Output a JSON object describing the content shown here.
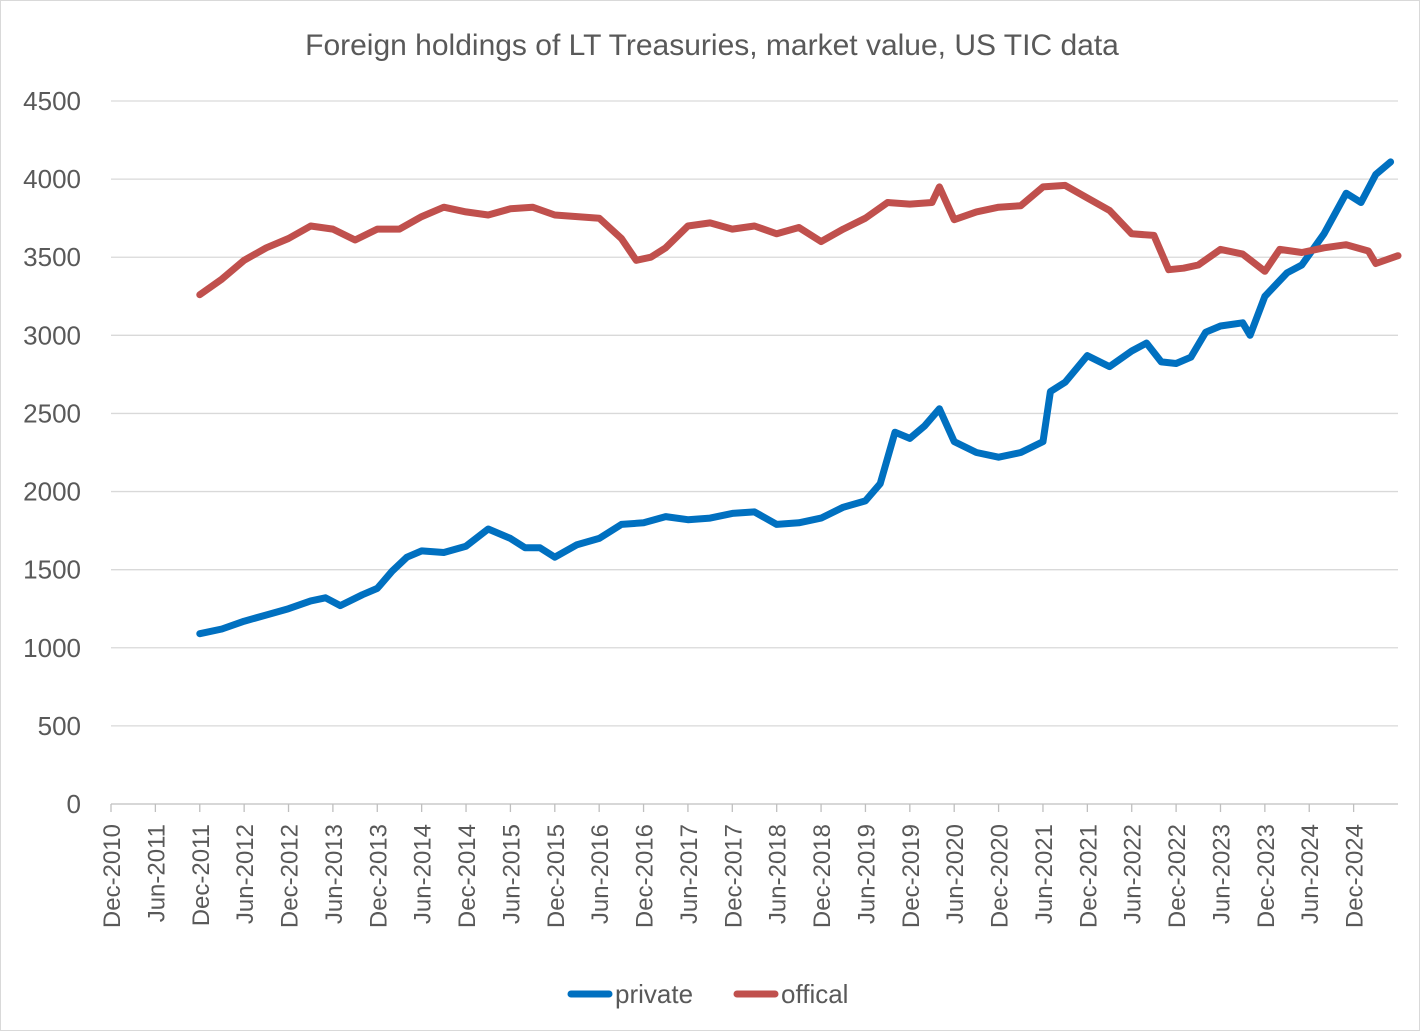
{
  "chart_data": {
    "type": "line",
    "title": "Foreign holdings of LT Treasuries, market value, US TIC data",
    "xlabel": "",
    "ylabel": "",
    "ylim": [
      0,
      4500
    ],
    "yticks": [
      "0",
      "500",
      "1000",
      "1500",
      "2000",
      "2500",
      "3000",
      "3500",
      "4000",
      "4500"
    ],
    "xlim": [
      "2010-12",
      "2025-06"
    ],
    "xticks": [
      "Dec-2010",
      "Jun-2011",
      "Dec-2011",
      "Jun-2012",
      "Dec-2012",
      "Jun-2013",
      "Dec-2013",
      "Jun-2014",
      "Dec-2014",
      "Jun-2015",
      "Dec-2015",
      "Jun-2016",
      "Dec-2016",
      "Jun-2017",
      "Dec-2017",
      "Jun-2018",
      "Dec-2018",
      "Jun-2019",
      "Dec-2019",
      "Jun-2020",
      "Dec-2020",
      "Jun-2021",
      "Dec-2021",
      "Jun-2022",
      "Dec-2022",
      "Jun-2023",
      "Dec-2023",
      "Jun-2024",
      "Dec-2024"
    ],
    "grid": true,
    "legend_position": "bottom",
    "series": [
      {
        "name": "private",
        "color": "#0070C0",
        "points": [
          [
            "2011-12",
            1090
          ],
          [
            "2012-03",
            1120
          ],
          [
            "2012-06",
            1170
          ],
          [
            "2012-09",
            1210
          ],
          [
            "2012-12",
            1250
          ],
          [
            "2013-03",
            1300
          ],
          [
            "2013-05",
            1320
          ],
          [
            "2013-07",
            1270
          ],
          [
            "2013-10",
            1340
          ],
          [
            "2013-12",
            1380
          ],
          [
            "2014-02",
            1490
          ],
          [
            "2014-04",
            1580
          ],
          [
            "2014-06",
            1620
          ],
          [
            "2014-09",
            1610
          ],
          [
            "2014-12",
            1650
          ],
          [
            "2015-03",
            1760
          ],
          [
            "2015-06",
            1700
          ],
          [
            "2015-08",
            1640
          ],
          [
            "2015-10",
            1640
          ],
          [
            "2015-12",
            1580
          ],
          [
            "2016-03",
            1660
          ],
          [
            "2016-06",
            1700
          ],
          [
            "2016-09",
            1790
          ],
          [
            "2016-12",
            1800
          ],
          [
            "2017-03",
            1840
          ],
          [
            "2017-06",
            1820
          ],
          [
            "2017-09",
            1830
          ],
          [
            "2017-12",
            1860
          ],
          [
            "2018-03",
            1870
          ],
          [
            "2018-06",
            1790
          ],
          [
            "2018-09",
            1800
          ],
          [
            "2018-12",
            1830
          ],
          [
            "2019-03",
            1900
          ],
          [
            "2019-06",
            1940
          ],
          [
            "2019-08",
            2050
          ],
          [
            "2019-10",
            2380
          ],
          [
            "2019-12",
            2340
          ],
          [
            "2020-02",
            2420
          ],
          [
            "2020-04",
            2530
          ],
          [
            "2020-06",
            2320
          ],
          [
            "2020-09",
            2250
          ],
          [
            "2020-12",
            2220
          ],
          [
            "2021-03",
            2250
          ],
          [
            "2021-06",
            2320
          ],
          [
            "2021-07",
            2640
          ],
          [
            "2021-09",
            2700
          ],
          [
            "2021-12",
            2870
          ],
          [
            "2022-03",
            2800
          ],
          [
            "2022-06",
            2900
          ],
          [
            "2022-08",
            2950
          ],
          [
            "2022-10",
            2830
          ],
          [
            "2022-12",
            2820
          ],
          [
            "2023-02",
            2860
          ],
          [
            "2023-04",
            3020
          ],
          [
            "2023-06",
            3060
          ],
          [
            "2023-09",
            3080
          ],
          [
            "2023-10",
            3000
          ],
          [
            "2023-12",
            3250
          ],
          [
            "2024-03",
            3400
          ],
          [
            "2024-05",
            3450
          ],
          [
            "2024-08",
            3650
          ],
          [
            "2024-11",
            3910
          ],
          [
            "2025-01",
            3850
          ],
          [
            "2025-03",
            4030
          ],
          [
            "2025-05",
            4110
          ]
        ]
      },
      {
        "name": "offical",
        "color": "#C0504D",
        "points": [
          [
            "2011-12",
            3260
          ],
          [
            "2012-03",
            3360
          ],
          [
            "2012-06",
            3480
          ],
          [
            "2012-09",
            3560
          ],
          [
            "2012-12",
            3620
          ],
          [
            "2013-03",
            3700
          ],
          [
            "2013-06",
            3680
          ],
          [
            "2013-09",
            3610
          ],
          [
            "2013-12",
            3680
          ],
          [
            "2014-03",
            3680
          ],
          [
            "2014-06",
            3760
          ],
          [
            "2014-09",
            3820
          ],
          [
            "2014-12",
            3790
          ],
          [
            "2015-03",
            3770
          ],
          [
            "2015-06",
            3810
          ],
          [
            "2015-09",
            3820
          ],
          [
            "2015-12",
            3770
          ],
          [
            "2016-03",
            3760
          ],
          [
            "2016-06",
            3750
          ],
          [
            "2016-09",
            3620
          ],
          [
            "2016-11",
            3480
          ],
          [
            "2017-01",
            3500
          ],
          [
            "2017-03",
            3560
          ],
          [
            "2017-06",
            3700
          ],
          [
            "2017-09",
            3720
          ],
          [
            "2017-12",
            3680
          ],
          [
            "2018-03",
            3700
          ],
          [
            "2018-06",
            3650
          ],
          [
            "2018-09",
            3690
          ],
          [
            "2018-12",
            3600
          ],
          [
            "2019-03",
            3680
          ],
          [
            "2019-06",
            3750
          ],
          [
            "2019-09",
            3850
          ],
          [
            "2019-12",
            3840
          ],
          [
            "2020-03",
            3850
          ],
          [
            "2020-04",
            3950
          ],
          [
            "2020-06",
            3740
          ],
          [
            "2020-09",
            3790
          ],
          [
            "2020-12",
            3820
          ],
          [
            "2021-03",
            3830
          ],
          [
            "2021-06",
            3950
          ],
          [
            "2021-09",
            3960
          ],
          [
            "2021-12",
            3880
          ],
          [
            "2022-03",
            3800
          ],
          [
            "2022-06",
            3650
          ],
          [
            "2022-09",
            3640
          ],
          [
            "2022-11",
            3420
          ],
          [
            "2023-01",
            3430
          ],
          [
            "2023-03",
            3450
          ],
          [
            "2023-06",
            3550
          ],
          [
            "2023-09",
            3520
          ],
          [
            "2023-12",
            3410
          ],
          [
            "2024-02",
            3550
          ],
          [
            "2024-05",
            3530
          ],
          [
            "2024-08",
            3560
          ],
          [
            "2024-11",
            3580
          ],
          [
            "2025-02",
            3540
          ],
          [
            "2025-03",
            3460
          ],
          [
            "2025-06",
            3510
          ]
        ]
      }
    ]
  }
}
